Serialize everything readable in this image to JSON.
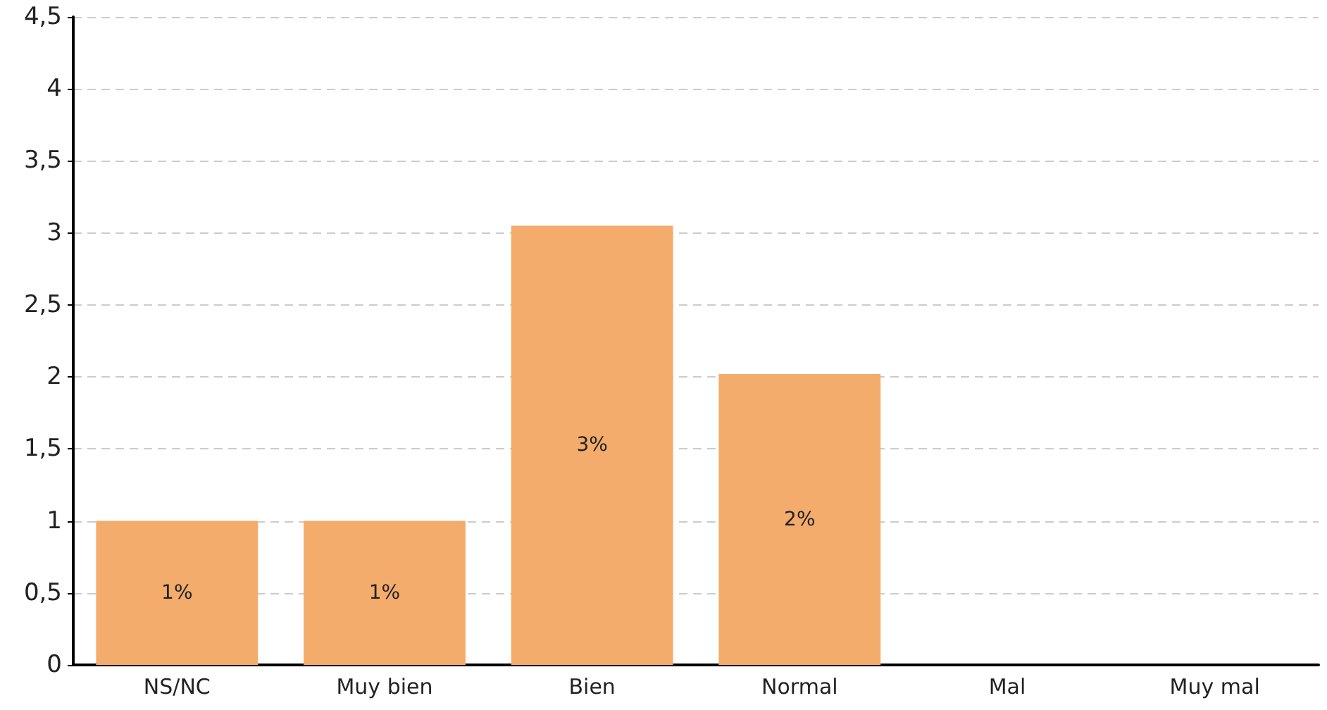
{
  "chart_data": {
    "type": "bar",
    "categories": [
      "NS/NC",
      "Muy bien",
      "Bien",
      "Normal",
      "Mal",
      "Muy mal"
    ],
    "values": [
      1,
      1,
      3.05,
      2.02,
      0,
      0
    ],
    "value_labels": [
      "1%",
      "1%",
      "3%",
      "2%",
      null,
      null
    ],
    "color": "#f3ac6c",
    "ylim": [
      0,
      4.5
    ],
    "yticks": [
      0,
      {
        "value": 0.5,
        "label": "0,5"
      },
      1,
      {
        "value": 1.5,
        "label": "1,5"
      },
      2,
      {
        "value": 2.5,
        "label": "2,5"
      },
      3,
      {
        "value": 3.5,
        "label": "3,5"
      },
      4,
      {
        "value": 4.5,
        "label": "4,5"
      }
    ],
    "grid": "y"
  }
}
